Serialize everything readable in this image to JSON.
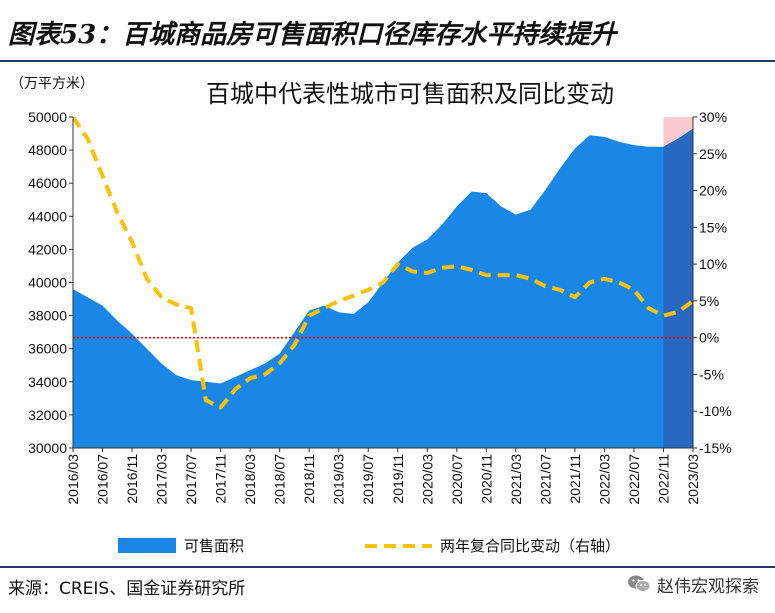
{
  "figure_title": "图表53：百城商品房可售面积口径库存水平持续提升",
  "source_text": "来源：CREIS、国金证券研究所",
  "watermark_text": "赵伟宏观探索",
  "watermark_icon": "wechat-icon",
  "chart_data": {
    "type": "area",
    "title": "百城中代表性城市可售面积及同比变动",
    "unit_label": "（万平方米）",
    "x_ticks": [
      "2016/03",
      "2016/07",
      "2016/11",
      "2017/03",
      "2017/07",
      "2017/11",
      "2018/03",
      "2018/07",
      "2018/11",
      "2019/03",
      "2019/07",
      "2019/11",
      "2020/03",
      "2020/07",
      "2020/11",
      "2021/03",
      "2021/07",
      "2021/11",
      "2022/03",
      "2022/07",
      "2022/11",
      "2023/03"
    ],
    "y_left": {
      "min": 30000,
      "max": 50000,
      "step": 2000,
      "tick_labels": [
        "30000",
        "32000",
        "34000",
        "36000",
        "38000",
        "40000",
        "42000",
        "44000",
        "46000",
        "48000",
        "50000"
      ]
    },
    "y_right": {
      "min": -15,
      "max": 30,
      "step": 5,
      "tick_labels": [
        "-15%",
        "-10%",
        "-5%",
        "0%",
        "5%",
        "10%",
        "15%",
        "20%",
        "25%",
        "30%"
      ]
    },
    "x_range": [
      "2016/03",
      "2023/03"
    ],
    "series": [
      {
        "name": "可售面积",
        "axis": "left",
        "style": "area",
        "color": "#1a87e6",
        "x": [
          "2016/03",
          "2016/05",
          "2016/07",
          "2016/09",
          "2016/11",
          "2017/01",
          "2017/03",
          "2017/05",
          "2017/07",
          "2017/09",
          "2017/11",
          "2018/01",
          "2018/03",
          "2018/05",
          "2018/07",
          "2018/09",
          "2018/11",
          "2019/01",
          "2019/03",
          "2019/05",
          "2019/07",
          "2019/09",
          "2019/11",
          "2020/01",
          "2020/03",
          "2020/05",
          "2020/07",
          "2020/09",
          "2020/11",
          "2021/01",
          "2021/03",
          "2021/05",
          "2021/07",
          "2021/09",
          "2021/11",
          "2022/01",
          "2022/03",
          "2022/05",
          "2022/07",
          "2022/09",
          "2022/11",
          "2023/01",
          "2023/03"
        ],
        "values": [
          39600,
          39100,
          38600,
          37700,
          36900,
          36000,
          35100,
          34400,
          34100,
          34000,
          33900,
          34300,
          34700,
          35100,
          35700,
          37000,
          38300,
          38600,
          38200,
          38100,
          38800,
          40000,
          41200,
          42100,
          42600,
          43500,
          44600,
          45500,
          45400,
          44600,
          44100,
          44400,
          45600,
          46900,
          48100,
          48900,
          48800,
          48500,
          48300,
          48200,
          48200,
          48700,
          49300
        ]
      },
      {
        "name": "两年复合同比变动（右轴）",
        "axis": "right",
        "style": "dashed-line",
        "color": "#ffc000",
        "x": [
          "2016/03",
          "2016/05",
          "2016/07",
          "2016/09",
          "2016/11",
          "2017/01",
          "2017/03",
          "2017/05",
          "2017/07",
          "2017/09",
          "2017/11",
          "2018/01",
          "2018/03",
          "2018/05",
          "2018/07",
          "2018/09",
          "2018/11",
          "2019/01",
          "2019/03",
          "2019/05",
          "2019/07",
          "2019/09",
          "2019/11",
          "2020/01",
          "2020/03",
          "2020/05",
          "2020/07",
          "2020/09",
          "2020/11",
          "2021/01",
          "2021/03",
          "2021/05",
          "2021/07",
          "2021/09",
          "2021/11",
          "2022/01",
          "2022/03",
          "2022/05",
          "2022/07",
          "2022/09",
          "2022/11",
          "2023/01",
          "2023/03"
        ],
        "values": [
          30,
          27,
          22,
          17,
          13,
          8,
          5.5,
          4.5,
          4,
          -8.5,
          -9.5,
          -7,
          -5.5,
          -5,
          -3.5,
          -1,
          3,
          4,
          5,
          5.7,
          6.5,
          7.5,
          10,
          9,
          8.8,
          9.5,
          9.7,
          9.2,
          8.5,
          8.5,
          8.5,
          8,
          7,
          6.5,
          5.5,
          7.5,
          8,
          7.5,
          6.5,
          4,
          3,
          3.5,
          5
        ]
      }
    ],
    "reference_line": {
      "value": 0,
      "axis": "right",
      "color": "#ff0000",
      "style": "dotted"
    },
    "highlight": {
      "from": "2022/11",
      "to": "2023/03",
      "color": "#f8c9cf"
    },
    "legend_position": "bottom",
    "grid": false
  }
}
